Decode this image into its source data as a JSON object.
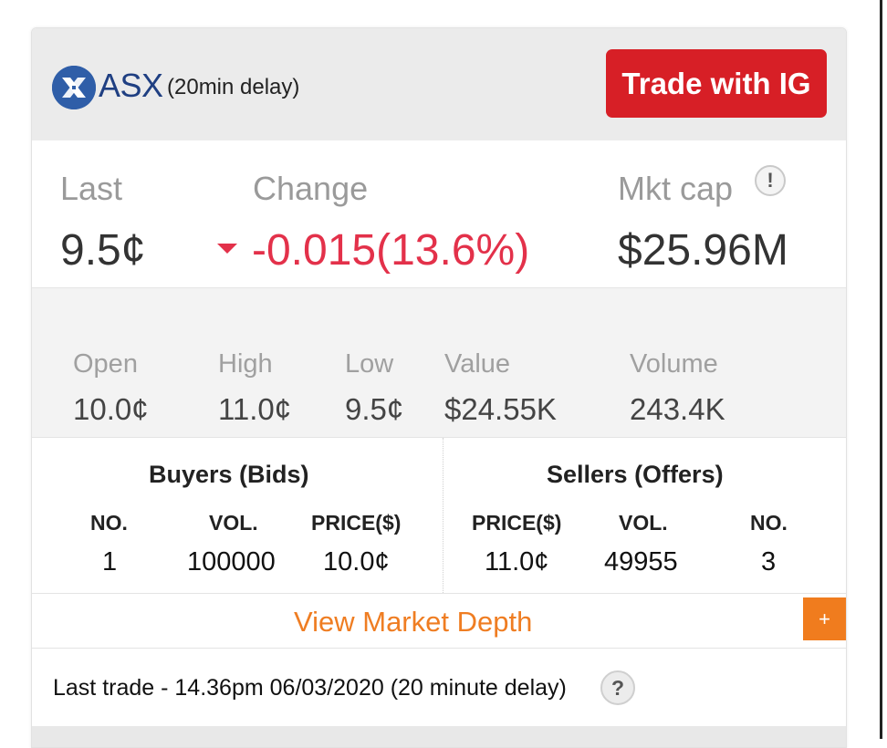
{
  "header": {
    "logo_text": "ASX",
    "delay_label": "(20min delay)",
    "trade_button": "Trade with IG",
    "logo_icon": "asx-logo-icon"
  },
  "summary": {
    "last_label": "Last",
    "last_value": "9.5¢",
    "change_label": "Change",
    "change_value": "-0.015(13.6%)",
    "change_direction": "down",
    "mktcap_label": "Mkt cap",
    "mktcap_value": "$25.96M",
    "info_glyph": "!"
  },
  "stats": [
    {
      "label": "Open",
      "value": "10.0¢"
    },
    {
      "label": "High",
      "value": "11.0¢"
    },
    {
      "label": "Low",
      "value": "9.5¢"
    },
    {
      "label": "Value",
      "value": "$24.55K"
    },
    {
      "label": "Volume",
      "value": "243.4K"
    }
  ],
  "orderbook": {
    "buyers_title": "Buyers (Bids)",
    "sellers_title": "Sellers (Offers)",
    "buyer_columns": [
      "NO.",
      "VOL.",
      "PRICE($)"
    ],
    "seller_columns": [
      "PRICE($)",
      "VOL.",
      "NO."
    ],
    "buyer_row": [
      "1",
      "100000",
      "10.0¢"
    ],
    "seller_row": [
      "11.0¢",
      "49955",
      "3"
    ]
  },
  "depth": {
    "link_label": "View Market Depth",
    "plus_label": "+"
  },
  "footer": {
    "last_trade": "Last trade - 14.36pm 06/03/2020 (20 minute delay)",
    "help_glyph": "?"
  },
  "colors": {
    "accent_red": "#d71f26",
    "change_red": "#e3314a",
    "accent_orange": "#ef7d22",
    "asx_blue": "#2f5ea8"
  }
}
